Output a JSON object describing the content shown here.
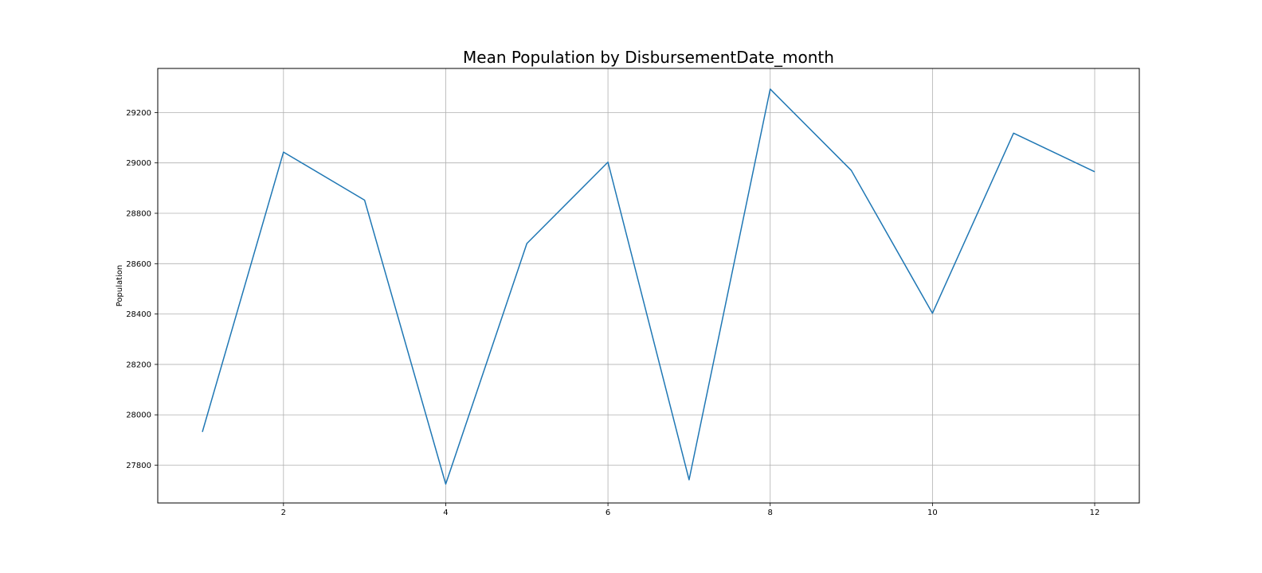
{
  "chart_data": {
    "type": "line",
    "title": "Mean Population by DisbursementDate_month",
    "xlabel": "",
    "ylabel": "Population",
    "x": [
      1,
      2,
      3,
      4,
      5,
      6,
      7,
      8,
      9,
      10,
      11,
      12
    ],
    "series": [
      {
        "values": [
          27932,
          29043,
          28852,
          27725,
          28680,
          29003,
          27742,
          29293,
          28970,
          28403,
          29118,
          28965
        ],
        "color": "#1f77b4"
      }
    ],
    "xticks": [
      2,
      4,
      6,
      8,
      10,
      12
    ],
    "yticks": [
      27800,
      28000,
      28200,
      28400,
      28600,
      28800,
      29000,
      29200
    ],
    "xlim": [
      0.45,
      12.55
    ],
    "ylim": [
      27650,
      29375
    ],
    "grid": true,
    "legend": "none"
  }
}
